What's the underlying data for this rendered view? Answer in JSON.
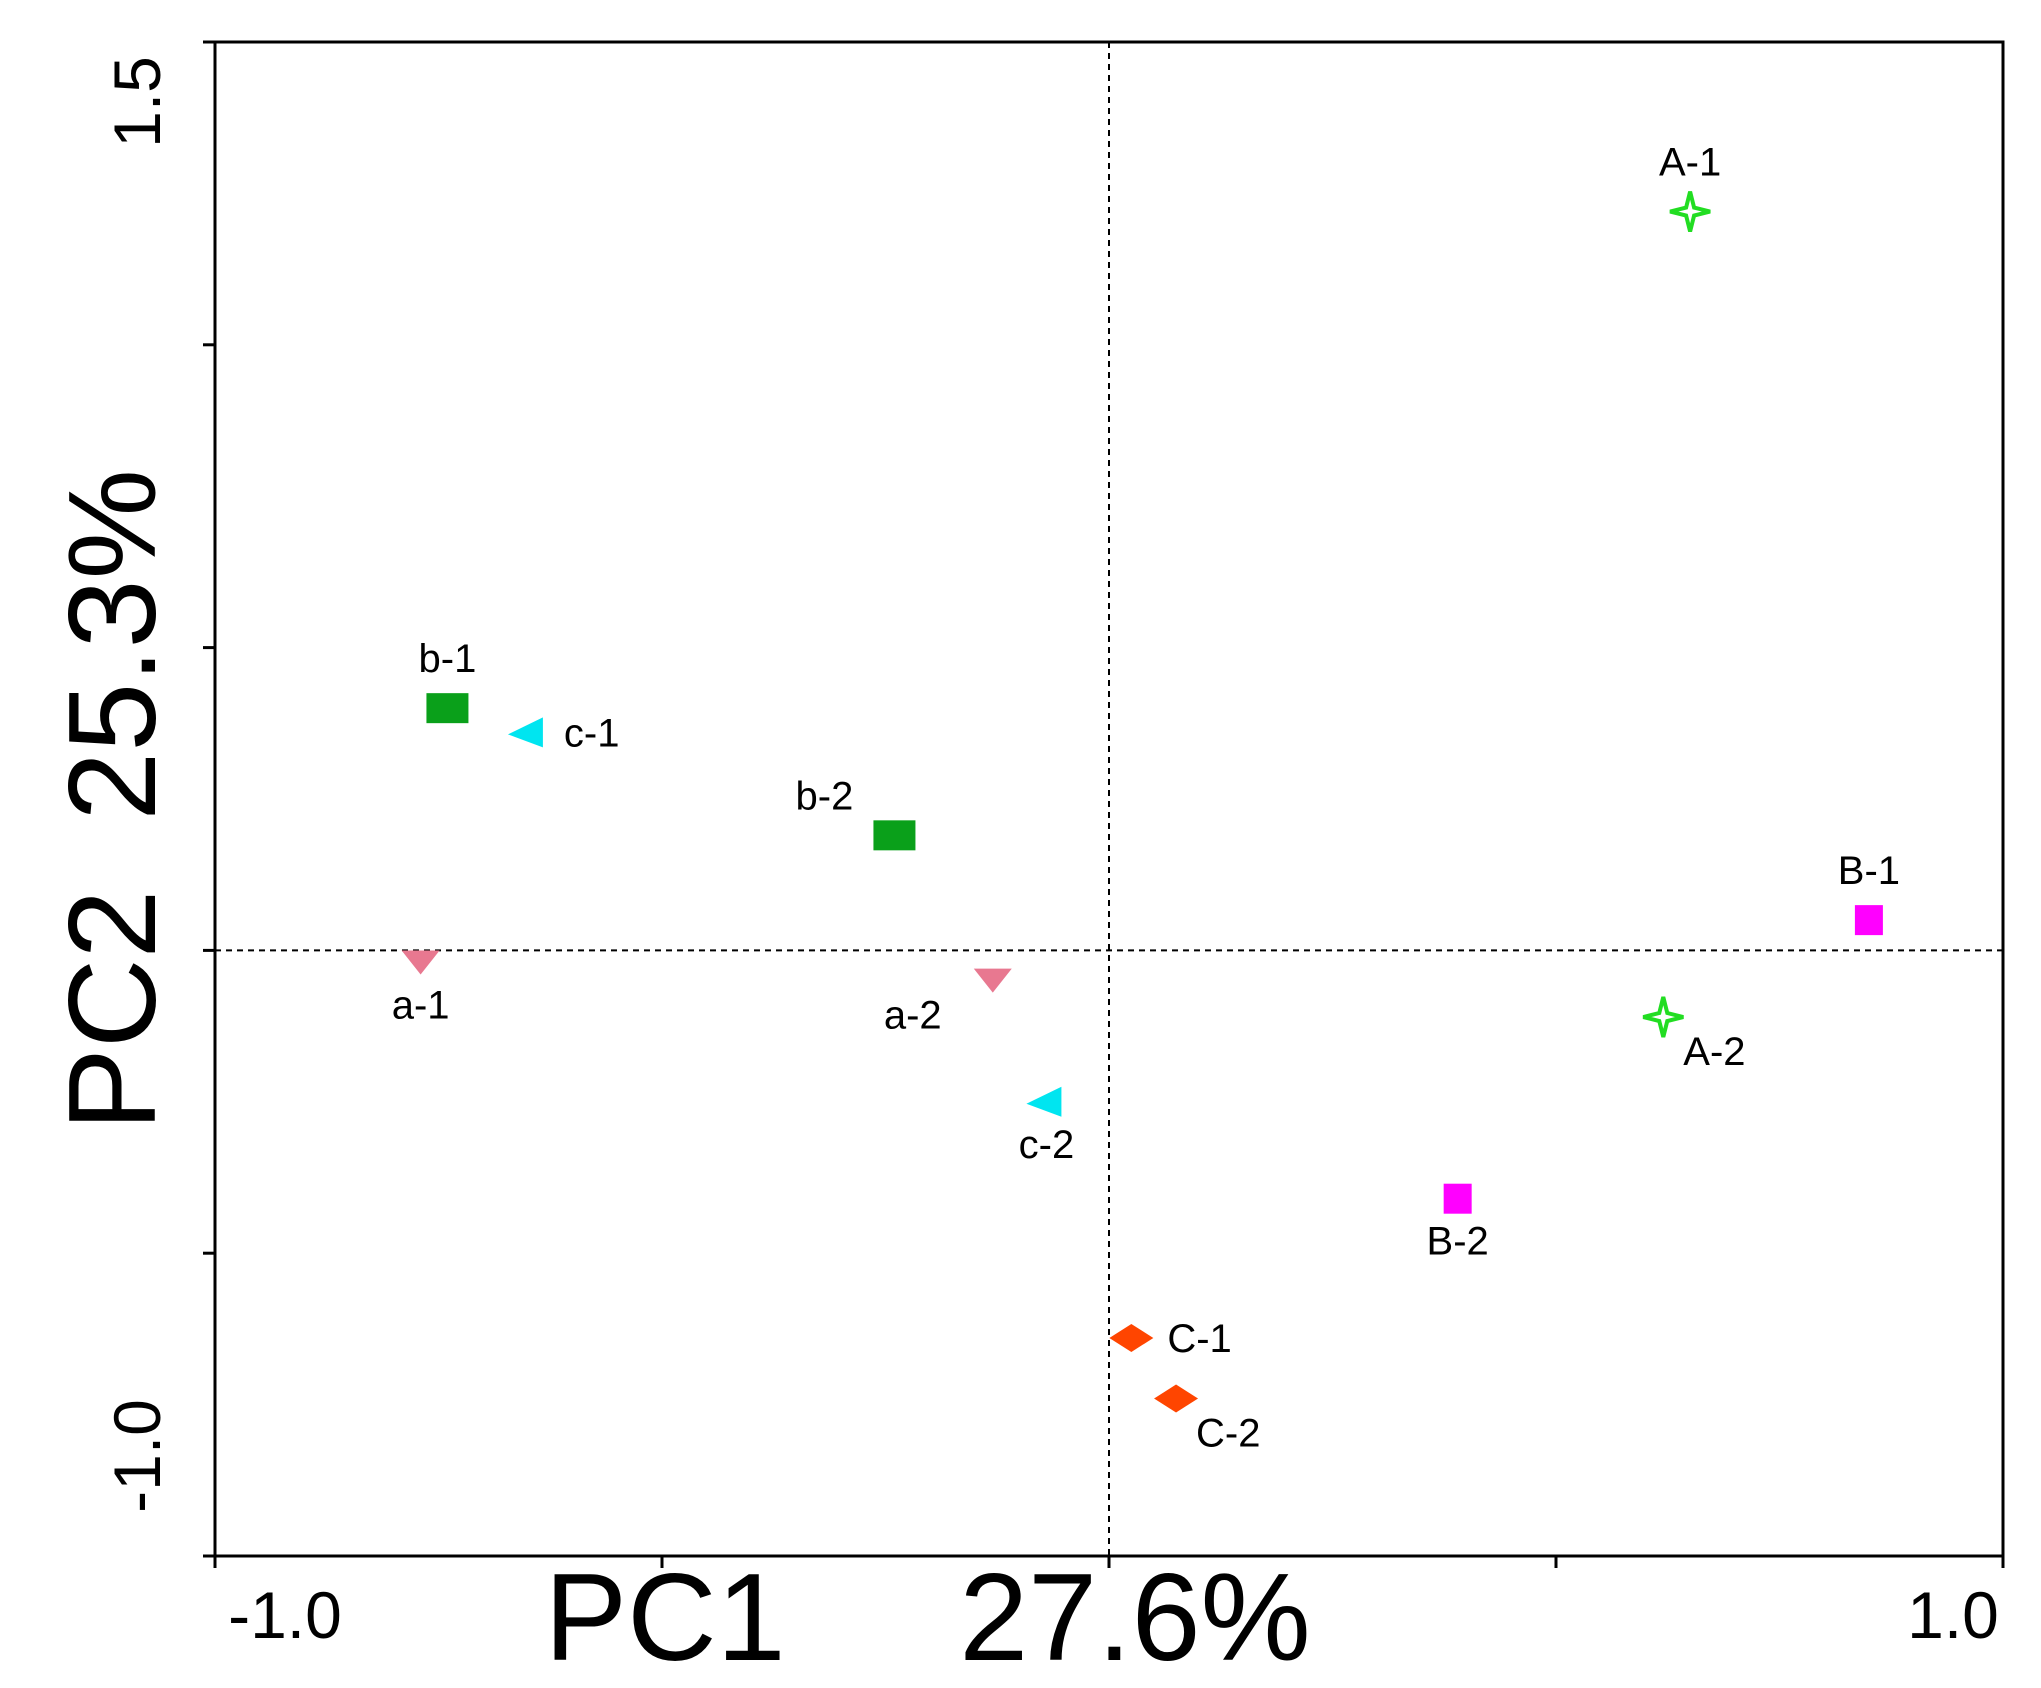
{
  "chart_data": {
    "type": "scatter",
    "title": "",
    "xlabel_name": "PC1",
    "xlabel_pct": "27.6%",
    "ylabel": "PC2  25.3%",
    "xlim": [
      -1.0,
      1.0
    ],
    "ylim": [
      -1.0,
      1.5
    ],
    "x_tick_labels": [
      "-1.0",
      "1.0"
    ],
    "y_tick_labels": [
      "-1.0",
      "1.5"
    ],
    "x_ticks": [
      -1.0,
      -0.5,
      0.0,
      0.5,
      1.0
    ],
    "y_ticks": [
      -1.0,
      -0.5,
      0.0,
      0.5,
      1.0,
      1.5
    ],
    "reference_lines": {
      "x": 0.0,
      "y": 0.0
    },
    "grid": false,
    "points": [
      {
        "label": "A-1",
        "x": 0.65,
        "y": 1.22,
        "color": "#22dd22",
        "marker": "star4",
        "label_pos": "above"
      },
      {
        "label": "A-2",
        "x": 0.62,
        "y": -0.11,
        "color": "#22dd22",
        "marker": "star4",
        "label_pos": "below-right"
      },
      {
        "label": "B-1",
        "x": 0.85,
        "y": 0.05,
        "color": "#ff00ff",
        "marker": "square",
        "label_pos": "above"
      },
      {
        "label": "B-2",
        "x": 0.39,
        "y": -0.41,
        "color": "#ff00ff",
        "marker": "square",
        "label_pos": "below"
      },
      {
        "label": "C-1",
        "x": 0.025,
        "y": -0.64,
        "color": "#ff4500",
        "marker": "diamond",
        "label_pos": "right"
      },
      {
        "label": "C-2",
        "x": 0.075,
        "y": -0.74,
        "color": "#ff4500",
        "marker": "diamond",
        "label_pos": "below-right"
      },
      {
        "label": "a-1",
        "x": -0.77,
        "y": -0.02,
        "color": "#e87890",
        "marker": "triangle-down",
        "label_pos": "below"
      },
      {
        "label": "a-2",
        "x": -0.13,
        "y": -0.05,
        "color": "#e87890",
        "marker": "triangle-down",
        "label_pos": "below-left"
      },
      {
        "label": "b-1",
        "x": -0.74,
        "y": 0.4,
        "color": "#0aa01a",
        "marker": "square",
        "label_pos": "above"
      },
      {
        "label": "b-2",
        "x": -0.24,
        "y": 0.19,
        "color": "#0aa01a",
        "marker": "square",
        "label_pos": "above-left"
      },
      {
        "label": "c-1",
        "x": -0.65,
        "y": 0.36,
        "color": "#00e5f0",
        "marker": "triangle-left",
        "label_pos": "right"
      },
      {
        "label": "c-2",
        "x": -0.07,
        "y": -0.25,
        "color": "#00e5f0",
        "marker": "triangle-left",
        "label_pos": "below"
      }
    ]
  }
}
